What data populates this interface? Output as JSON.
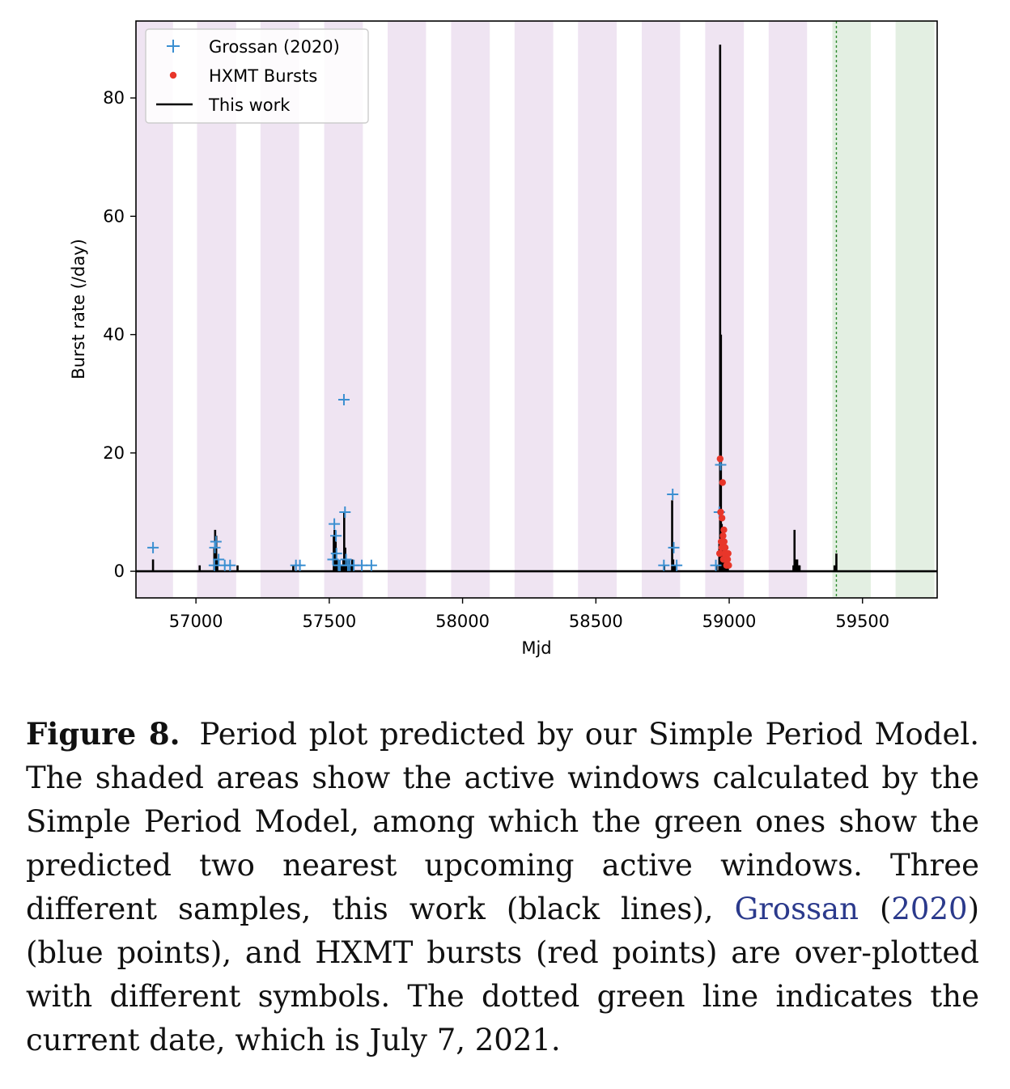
{
  "chart_data": {
    "type": "line",
    "xlabel": "Mjd",
    "ylabel": "Burst rate (/day)",
    "xlim": [
      56775,
      59780
    ],
    "ylim": [
      -4.5,
      93
    ],
    "xticks": [
      "57000",
      "57500",
      "58000",
      "58500",
      "59000",
      "59500"
    ],
    "yticks": [
      "0",
      "20",
      "40",
      "60",
      "80"
    ],
    "grid": false,
    "legend_position": "top-left",
    "legend": [
      {
        "label": "Grossan (2020)",
        "marker": "plus",
        "color": "#3b8fd1"
      },
      {
        "label": "HXMT Bursts",
        "marker": "dot",
        "color": "#e8362a"
      },
      {
        "label": "This work",
        "marker": "line",
        "color": "#000000"
      }
    ],
    "active_windows_purple": [
      [
        56765,
        56914
      ],
      [
        57004,
        57151
      ],
      [
        57242,
        57387
      ],
      [
        57481,
        57626
      ],
      [
        57719,
        57863
      ],
      [
        57957,
        58102
      ],
      [
        58195,
        58340
      ],
      [
        58433,
        58578
      ],
      [
        58672,
        58816
      ],
      [
        58910,
        59055
      ],
      [
        59148,
        59292
      ]
    ],
    "active_windows_green": [
      [
        59387,
        59531
      ],
      [
        59624,
        59770
      ]
    ],
    "current_date_mjd": 59402,
    "colors": {
      "purple_window": "#efe4f2",
      "green_window": "#e3efe2",
      "current_date_line": "#2e8b2e",
      "grossan": "#3b8fd1",
      "hxmt": "#e8362a",
      "this_work": "#000000"
    },
    "series": [
      {
        "name": "This work",
        "style": "spikes",
        "x": [
          56839,
          57014,
          57069,
          57072,
          57076,
          57080,
          57156,
          57365,
          57517,
          57520,
          57524,
          57528,
          57545,
          57553,
          57556,
          57560,
          57564,
          57569,
          57574,
          57580,
          57586,
          58756,
          58786,
          58790,
          58796,
          58952,
          58963,
          58966,
          58969,
          58972,
          58976,
          58983,
          58989,
          58995,
          59241,
          59245,
          59250,
          59255,
          59260,
          59264,
          59395,
          59402
        ],
        "y": [
          2,
          1,
          4,
          7,
          6,
          2,
          1,
          1,
          6,
          7,
          5,
          2,
          1,
          2,
          10,
          4,
          2,
          1,
          2,
          1,
          2,
          1,
          12,
          2,
          1,
          1,
          5,
          89,
          40,
          8,
          5,
          2,
          2,
          1,
          1,
          7,
          2,
          2,
          1,
          1,
          1,
          3
        ]
      },
      {
        "name": "Grossan (2020)",
        "style": "plus",
        "x": [
          56839,
          57069,
          57071,
          57075,
          57085,
          57108,
          57128,
          57375,
          57390,
          57514,
          57519,
          57525,
          57527,
          57535,
          57540,
          57555,
          57559,
          57563,
          57570,
          57577,
          57592,
          57622,
          57658,
          58755,
          58788,
          58792,
          58803,
          58950,
          58963,
          58968
        ],
        "y": [
          4,
          1,
          4,
          5,
          2,
          1,
          1,
          1,
          1,
          2,
          8,
          6,
          3,
          1,
          1,
          29,
          10,
          2,
          1,
          1,
          1,
          1,
          1,
          1,
          13,
          4,
          1,
          1,
          10,
          18
        ]
      },
      {
        "name": "HXMT Bursts",
        "style": "dot",
        "x": [
          58964,
          58966,
          58968,
          58970,
          58972,
          58973,
          58975,
          58977,
          58978,
          58980,
          58981,
          58983,
          58985,
          58986,
          58988,
          58990,
          58992,
          58994,
          58996,
          58998
        ],
        "y": [
          3,
          19,
          10,
          5,
          4,
          9,
          15,
          6,
          2,
          7,
          5,
          3,
          4,
          2,
          3,
          1,
          2,
          2,
          3,
          1
        ]
      }
    ]
  },
  "caption": {
    "figure_label": "Figure 8.",
    "text_1": "Period plot predicted by our Simple Period Model. The shaded areas show the active windows calculated by the Simple Period Model, among which the green ones show the predicted two nearest upcoming active windows. Three different samples, this work (black lines), ",
    "cite_author": "Grossan",
    "text_2": " (",
    "cite_year": "2020",
    "text_3": ") (blue points), and HXMT bursts (red points) are over-plotted with different symbols. The dotted green line indicates the current date, which is July 7, 2021."
  }
}
